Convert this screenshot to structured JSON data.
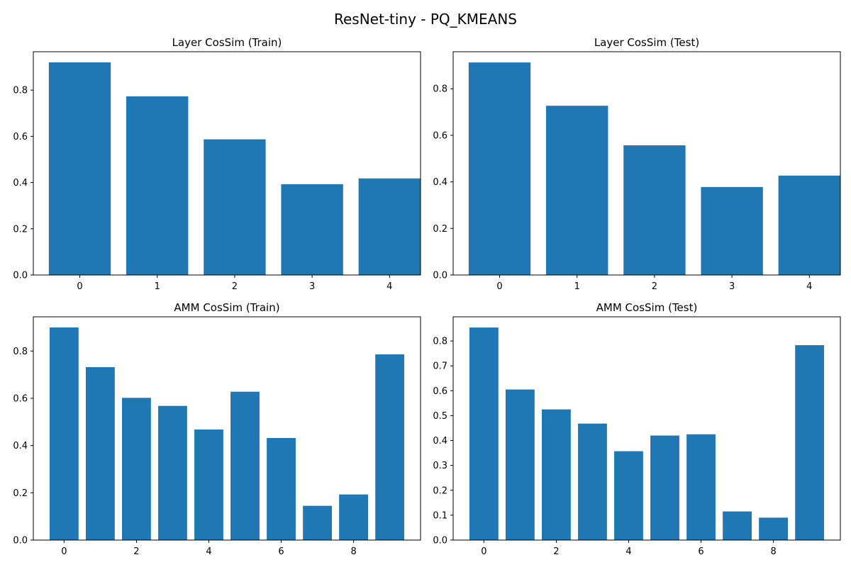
{
  "figure": {
    "title": "ResNet-tiny - PQ_KMEANS",
    "bar_color": "#1f77b4"
  },
  "chart_data": [
    {
      "type": "bar",
      "title": "Layer CosSim (Train)",
      "categories": [
        0,
        1,
        2,
        3,
        4
      ],
      "values": [
        0.92,
        0.773,
        0.587,
        0.393,
        0.418
      ],
      "xticks": [
        0,
        1,
        2,
        3,
        4
      ],
      "yticks": [
        0.0,
        0.2,
        0.4,
        0.6,
        0.8
      ],
      "ytick_labels": [
        "0.0",
        "0.2",
        "0.4",
        "0.6",
        "0.8"
      ],
      "xlim": [
        -0.6,
        4.4
      ],
      "ylim": [
        0,
        0.966
      ],
      "xlabel": "",
      "ylabel": "",
      "grid": false
    },
    {
      "type": "bar",
      "title": "Layer CosSim (Test)",
      "categories": [
        0,
        1,
        2,
        3,
        4
      ],
      "values": [
        0.913,
        0.727,
        0.557,
        0.378,
        0.427
      ],
      "xticks": [
        0,
        1,
        2,
        3,
        4
      ],
      "yticks": [
        0.0,
        0.2,
        0.4,
        0.6,
        0.8
      ],
      "ytick_labels": [
        "0.0",
        "0.2",
        "0.4",
        "0.6",
        "0.8"
      ],
      "xlim": [
        -0.6,
        4.4
      ],
      "ylim": [
        0,
        0.959
      ],
      "xlabel": "",
      "ylabel": "",
      "grid": false
    },
    {
      "type": "bar",
      "title": "AMM CosSim (Train)",
      "categories": [
        0,
        1,
        2,
        3,
        4,
        5,
        6,
        7,
        8,
        9
      ],
      "values": [
        0.9,
        0.732,
        0.602,
        0.568,
        0.468,
        0.628,
        0.432,
        0.145,
        0.193,
        0.786
      ],
      "xticks": [
        0,
        2,
        4,
        6,
        8
      ],
      "yticks": [
        0.0,
        0.2,
        0.4,
        0.6,
        0.8
      ],
      "ytick_labels": [
        "0.0",
        "0.2",
        "0.4",
        "0.6",
        "0.8"
      ],
      "xlim": [
        -0.85,
        9.85
      ],
      "ylim": [
        0,
        0.945
      ],
      "xlabel": "",
      "ylabel": "",
      "grid": false
    },
    {
      "type": "bar",
      "title": "AMM CosSim (Test)",
      "categories": [
        0,
        1,
        2,
        3,
        4,
        5,
        6,
        7,
        8,
        9
      ],
      "values": [
        0.854,
        0.605,
        0.525,
        0.468,
        0.357,
        0.42,
        0.425,
        0.115,
        0.09,
        0.783
      ],
      "xticks": [
        0,
        2,
        4,
        6,
        8
      ],
      "yticks": [
        0.0,
        0.1,
        0.2,
        0.3,
        0.4,
        0.5,
        0.6,
        0.7,
        0.8
      ],
      "ytick_labels": [
        "0.0",
        "0.1",
        "0.2",
        "0.3",
        "0.4",
        "0.5",
        "0.6",
        "0.7",
        "0.8"
      ],
      "xlim": [
        -0.85,
        9.85
      ],
      "ylim": [
        0,
        0.897
      ],
      "xlabel": "",
      "ylabel": "",
      "grid": false
    }
  ]
}
